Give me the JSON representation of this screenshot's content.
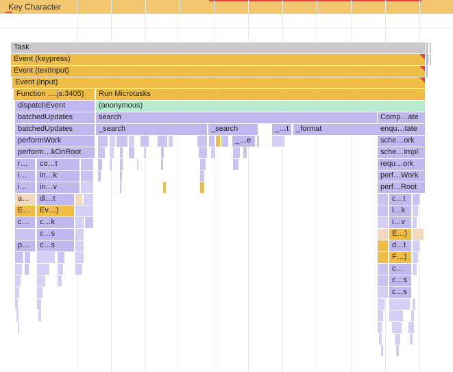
{
  "timeline": {
    "interaction_label": "Key Character"
  },
  "flame_rows": [
    [
      {
        "text": "Task",
        "color": "#c9c9c9"
      }
    ],
    [
      {
        "text": "Event (keypress)",
        "color": "#efbc47"
      }
    ],
    [
      {
        "text": "Event (textInput)",
        "color": "#efbc47"
      }
    ],
    [
      {
        "text": "Event (input)",
        "color": "#efbc47"
      }
    ],
    [
      {
        "text": "Function ….js:3405)",
        "color": "#efbc47"
      },
      {
        "text": "Run Microtasks",
        "color": "#efbc47"
      }
    ],
    [
      {
        "text": "dispatchEvent",
        "color": "#c0b9f0"
      },
      {
        "text": "(anonymous)",
        "color": "#b6ebd1"
      }
    ],
    [
      {
        "text": "batchedUpdates",
        "color": "#c0b9f0"
      },
      {
        "text": "search",
        "color": "#c0b9f0"
      },
      {
        "text": "Comp…ate",
        "color": "#c0b9f0"
      }
    ],
    [
      {
        "text": "batchedUpdates",
        "color": "#c0b9f0"
      },
      {
        "text": "_search",
        "color": "#c0b9f0"
      },
      {
        "text": "_search",
        "color": "#c0b9f0"
      },
      {
        "text": "_…t",
        "color": "#c0b9f0"
      },
      {
        "text": "_format",
        "color": "#c0b9f0"
      },
      {
        "text": "enqu…tate",
        "color": "#c0b9f0"
      }
    ],
    [
      {
        "text": "performWork",
        "color": "#c0b9f0"
      },
      {
        "text": "_…e",
        "color": "#c0b9f0"
      },
      {
        "text": "sche…ork",
        "color": "#c0b9f0"
      }
    ],
    [
      {
        "text": "perform…kOnRoot",
        "color": "#c0b9f0"
      },
      {
        "text": "sche…Impl",
        "color": "#c0b9f0"
      }
    ],
    [
      {
        "text": "r…",
        "color": "#c0b9f0"
      },
      {
        "text": "co…t",
        "color": "#c0b9f0"
      },
      {
        "text": "requ…ork",
        "color": "#c0b9f0"
      }
    ],
    [
      {
        "text": "i…",
        "color": "#c0b9f0"
      },
      {
        "text": "in…k",
        "color": "#c0b9f0"
      },
      {
        "text": "perf…Work",
        "color": "#c0b9f0"
      }
    ],
    [
      {
        "text": "i…",
        "color": "#c0b9f0"
      },
      {
        "text": "in…v",
        "color": "#c0b9f0"
      },
      {
        "text": "perf…Root",
        "color": "#c0b9f0"
      }
    ],
    [
      {
        "text": "a…",
        "color": "#f2d9bd"
      },
      {
        "text": "di…t",
        "color": "#c0b9f0"
      },
      {
        "text": "c…t",
        "color": "#c0b9f0"
      }
    ],
    [
      {
        "text": "E…",
        "color": "#efbc47"
      },
      {
        "text": "Ev…)",
        "color": "#efbc47"
      },
      {
        "text": "i…k",
        "color": "#c0b9f0"
      }
    ],
    [
      {
        "text": "c…",
        "color": "#c0b9f0"
      },
      {
        "text": "c…k",
        "color": "#c0b9f0"
      },
      {
        "text": "i…v",
        "color": "#c0b9f0"
      }
    ],
    [
      {
        "text": "c…s",
        "color": "#c0b9f0"
      },
      {
        "text": "E…)",
        "color": "#efbc47"
      }
    ],
    [
      {
        "text": "p…",
        "color": "#c0b9f0"
      },
      {
        "text": "c…s",
        "color": "#c0b9f0"
      },
      {
        "text": "d…t",
        "color": "#c0b9f0"
      }
    ],
    [
      {
        "text": "F…)",
        "color": "#efbc47"
      }
    ],
    [
      {
        "text": "c…",
        "color": "#c0b9f0"
      }
    ],
    [
      {
        "text": "c…s",
        "color": "#c0b9f0"
      }
    ],
    [
      {
        "text": "c…s",
        "color": "#c0b9f0"
      }
    ]
  ]
}
